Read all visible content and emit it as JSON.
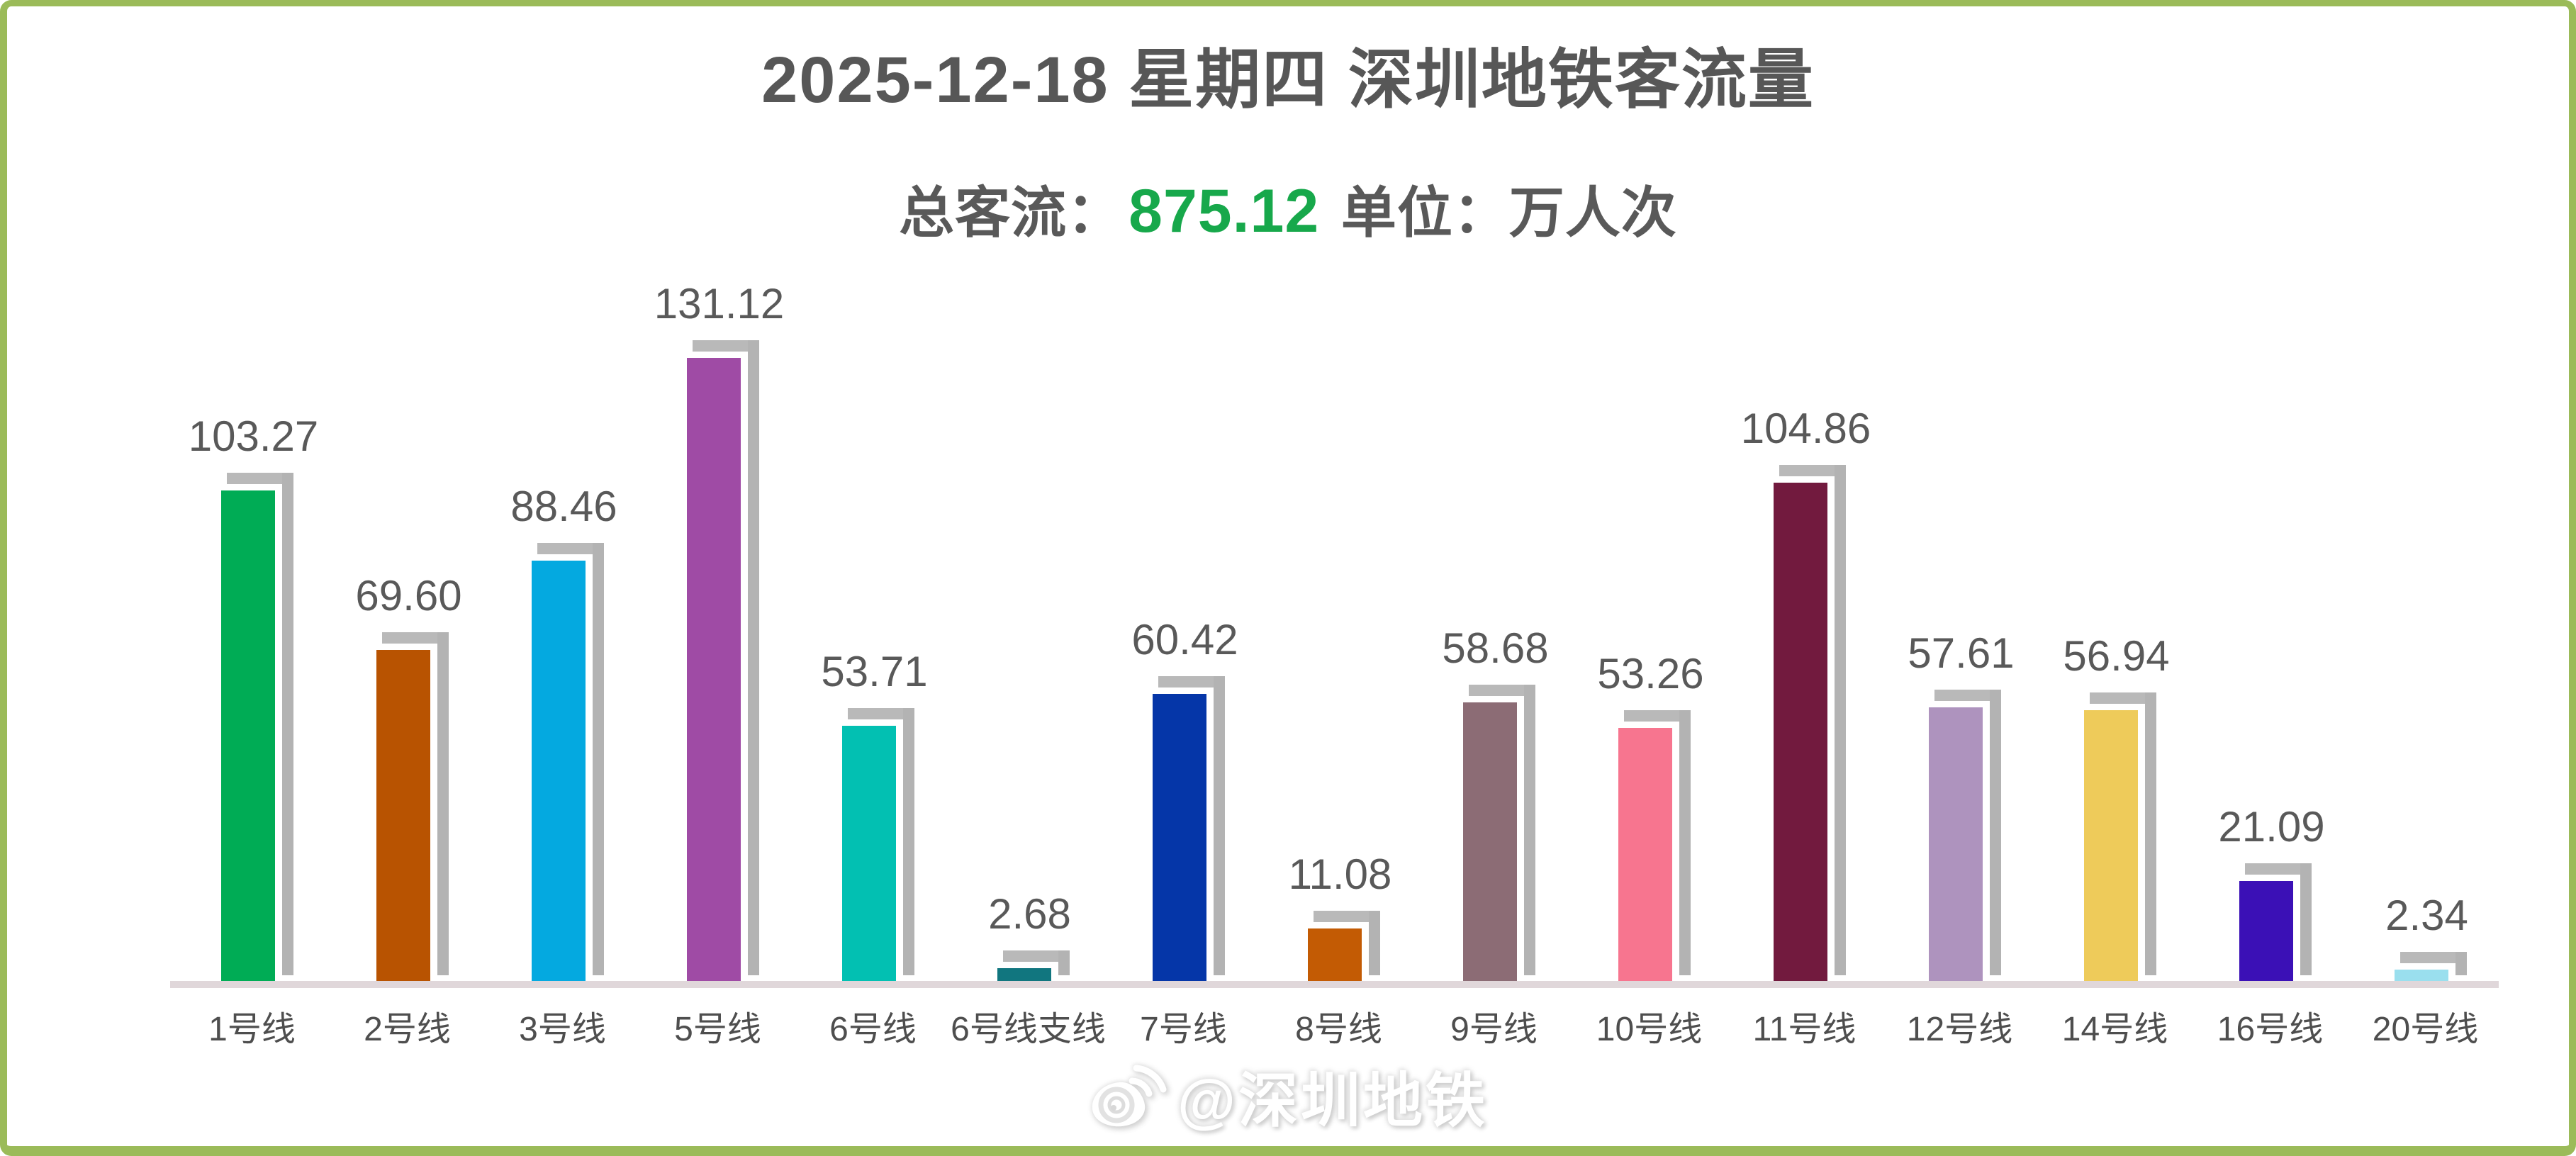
{
  "header": {
    "title": "2025-12-18 星期四 深圳地铁客流量"
  },
  "subtitle": {
    "prefix": "总客流：",
    "total": "875.12",
    "suffix": " 单位：万人次"
  },
  "watermark": {
    "icon": "weibo-icon",
    "text": "@深圳地铁"
  },
  "colors": {
    "frame_green": "#9BBB59",
    "title_gray": "#575757",
    "subtitle_gray": "#595959",
    "total_green": "#17A84B",
    "value_label_gray": "#595959",
    "x_label_gray": "#4E4E4E",
    "axis_line": "#E0D7DA",
    "bar_shadow": "#B3B3B3"
  },
  "chart_data": {
    "type": "bar",
    "title": "2025-12-18 星期四 深圳地铁客流量",
    "subtitle_total": 875.12,
    "unit": "万人次",
    "categories": [
      "1号线",
      "2号线",
      "3号线",
      "5号线",
      "6号线",
      "6号线支线",
      "7号线",
      "8号线",
      "9号线",
      "10号线",
      "11号线",
      "12号线",
      "14号线",
      "16号线",
      "20号线"
    ],
    "values": [
      103.27,
      69.6,
      88.46,
      131.12,
      53.71,
      2.68,
      60.42,
      11.08,
      58.68,
      53.26,
      104.86,
      57.61,
      56.94,
      21.09,
      2.34
    ],
    "bar_colors": [
      "#00AC55",
      "#B85301",
      "#04A9E0",
      "#9F4BA5",
      "#02C0B2",
      "#11767F",
      "#0536A8",
      "#C35B04",
      "#8C6C75",
      "#F7758F",
      "#721A3E",
      "#AE93BE",
      "#EECB5A",
      "#3B10B6",
      "#9ADFEE"
    ],
    "value_label_format": "2-decimals",
    "ylim": [
      0,
      140
    ],
    "grid": false,
    "legend": "none",
    "bar_shadow_style": "offset-up-right-gray"
  }
}
